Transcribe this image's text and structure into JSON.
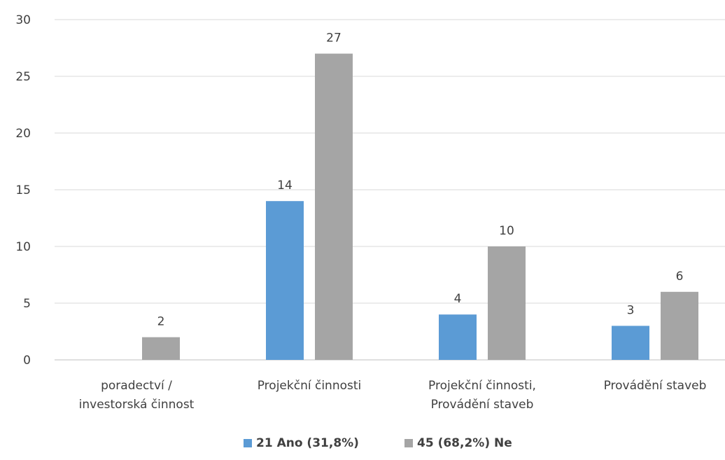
{
  "chart_data": {
    "type": "bar",
    "categories": [
      [
        "poradectví /",
        "investorská činnost"
      ],
      [
        "Projekční činnosti"
      ],
      [
        "Projekční činnosti,",
        "Provádění staveb"
      ],
      [
        "Provádění staveb"
      ]
    ],
    "series": [
      {
        "name": "21 Ano (31,8%)",
        "color": "#5b9bd5",
        "values": [
          0,
          14,
          4,
          3
        ]
      },
      {
        "name": "45 (68,2%) Ne",
        "color": "#a5a5a5",
        "values": [
          2,
          27,
          10,
          6
        ]
      }
    ],
    "data_labels": [
      [
        null,
        "14",
        "4",
        "3"
      ],
      [
        "2",
        "27",
        "10",
        "6"
      ]
    ],
    "title": "",
    "xlabel": "",
    "ylabel": "",
    "ylim": [
      0,
      30
    ],
    "yticks": [
      "0",
      "5",
      "10",
      "15",
      "20",
      "25",
      "30"
    ],
    "grid": true,
    "legend_position": "bottom"
  }
}
